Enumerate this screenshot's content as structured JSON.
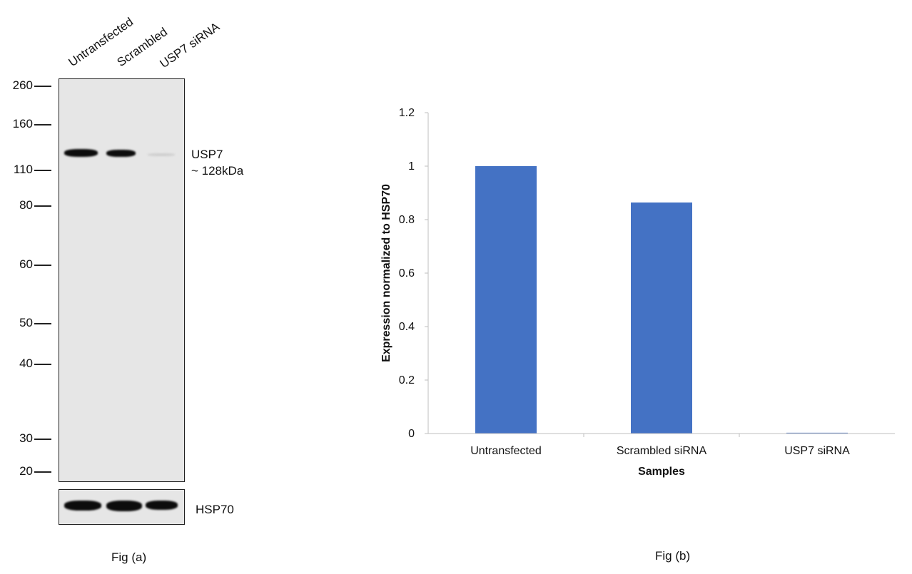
{
  "figure_a": {
    "caption": "Fig (a)",
    "lanes": [
      "Untransfected",
      "Scrambled",
      "USP7 siRNA"
    ],
    "markers_kda": [
      "260",
      "160",
      "110",
      "80",
      "60",
      "50",
      "40",
      "30",
      "20"
    ],
    "target_label": "USP7",
    "target_size": "~ 128kDa",
    "loading_control": "HSP70"
  },
  "figure_b": {
    "caption": "Fig (b)"
  },
  "chart_data": {
    "type": "bar",
    "categories": [
      "Untransfected",
      "Scrambled siRNA",
      "USP7 siRNA"
    ],
    "values": [
      1.0,
      0.864,
      0.003
    ],
    "xlabel": "Samples",
    "ylabel": "Expression  normalized to HSP70",
    "ylim": [
      0,
      1.2
    ],
    "yticks": [
      "0",
      "0.2",
      "0.4",
      "0.6",
      "0.8",
      "1",
      "1.2"
    ],
    "grid": false,
    "bar_color": "#4472c4"
  }
}
